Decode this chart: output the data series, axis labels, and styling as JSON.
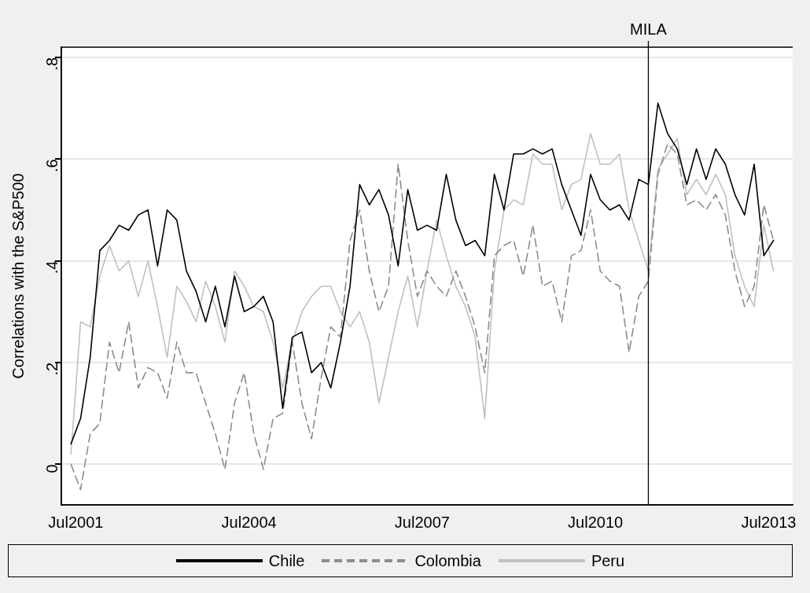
{
  "chart_data": {
    "type": "line",
    "ylabel": "Correlations with the S&P500",
    "x": [
      "2001-06",
      "2001-08",
      "2001-10",
      "2001-12",
      "2002-02",
      "2002-04",
      "2002-06",
      "2002-08",
      "2002-10",
      "2002-12",
      "2003-02",
      "2003-04",
      "2003-06",
      "2003-08",
      "2003-10",
      "2003-12",
      "2004-02",
      "2004-04",
      "2004-06",
      "2004-08",
      "2004-10",
      "2004-12",
      "2005-02",
      "2005-04",
      "2005-06",
      "2005-08",
      "2005-10",
      "2005-12",
      "2006-02",
      "2006-04",
      "2006-06",
      "2006-08",
      "2006-10",
      "2006-12",
      "2007-02",
      "2007-04",
      "2007-06",
      "2007-08",
      "2007-10",
      "2007-12",
      "2008-02",
      "2008-04",
      "2008-06",
      "2008-08",
      "2008-10",
      "2008-12",
      "2009-02",
      "2009-04",
      "2009-06",
      "2009-08",
      "2009-10",
      "2009-12",
      "2010-02",
      "2010-04",
      "2010-06",
      "2010-08",
      "2010-10",
      "2010-12",
      "2011-02",
      "2011-04",
      "2011-06",
      "2011-08",
      "2011-10",
      "2011-12",
      "2012-02",
      "2012-04",
      "2012-06",
      "2012-08",
      "2012-10",
      "2012-12",
      "2013-02",
      "2013-04",
      "2013-06",
      "2013-08"
    ],
    "series": [
      {
        "name": "Chile",
        "color": "#000000",
        "line_style": "solid",
        "values": [
          0.04,
          0.09,
          0.21,
          0.42,
          0.44,
          0.47,
          0.46,
          0.49,
          0.5,
          0.39,
          0.5,
          0.48,
          0.38,
          0.34,
          0.28,
          0.35,
          0.27,
          0.37,
          0.3,
          0.31,
          0.33,
          0.28,
          0.11,
          0.25,
          0.26,
          0.18,
          0.2,
          0.15,
          0.24,
          0.35,
          0.55,
          0.51,
          0.54,
          0.49,
          0.39,
          0.54,
          0.46,
          0.47,
          0.46,
          0.57,
          0.48,
          0.43,
          0.44,
          0.41,
          0.57,
          0.5,
          0.61,
          0.61,
          0.62,
          0.61,
          0.62,
          0.55,
          0.5,
          0.45,
          0.57,
          0.52,
          0.5,
          0.51,
          0.48,
          0.56,
          0.55,
          0.71,
          0.65,
          0.62,
          0.55,
          0.62,
          0.56,
          0.62,
          0.59,
          0.53,
          0.49,
          0.59,
          0.41,
          0.44
        ]
      },
      {
        "name": "Colombia",
        "color": "#8c8c8c",
        "line_style": "dashed",
        "values": [
          0.0,
          -0.05,
          0.06,
          0.08,
          0.24,
          0.18,
          0.28,
          0.15,
          0.19,
          0.18,
          0.13,
          0.24,
          0.18,
          0.18,
          0.12,
          0.06,
          -0.01,
          0.12,
          0.18,
          0.06,
          -0.01,
          0.09,
          0.1,
          0.24,
          0.12,
          0.05,
          0.17,
          0.27,
          0.25,
          0.44,
          0.5,
          0.38,
          0.3,
          0.35,
          0.59,
          0.44,
          0.33,
          0.38,
          0.35,
          0.33,
          0.38,
          0.33,
          0.27,
          0.18,
          0.41,
          0.43,
          0.44,
          0.37,
          0.47,
          0.35,
          0.36,
          0.28,
          0.41,
          0.42,
          0.5,
          0.38,
          0.36,
          0.35,
          0.22,
          0.33,
          0.36,
          0.57,
          0.63,
          0.61,
          0.51,
          0.52,
          0.5,
          0.53,
          0.49,
          0.38,
          0.31,
          0.35,
          0.51,
          0.44
        ]
      },
      {
        "name": "Peru",
        "color": "#c0c0c0",
        "line_style": "solid",
        "values": [
          0.02,
          0.28,
          0.27,
          0.37,
          0.43,
          0.38,
          0.4,
          0.33,
          0.4,
          0.31,
          0.21,
          0.35,
          0.32,
          0.28,
          0.36,
          0.31,
          0.24,
          0.38,
          0.35,
          0.31,
          0.3,
          0.24,
          0.15,
          0.24,
          0.3,
          0.33,
          0.35,
          0.35,
          0.3,
          0.27,
          0.3,
          0.24,
          0.12,
          0.21,
          0.3,
          0.37,
          0.27,
          0.38,
          0.48,
          0.41,
          0.35,
          0.31,
          0.25,
          0.09,
          0.38,
          0.5,
          0.52,
          0.51,
          0.61,
          0.59,
          0.59,
          0.5,
          0.55,
          0.56,
          0.65,
          0.59,
          0.59,
          0.61,
          0.5,
          0.44,
          0.38,
          0.58,
          0.61,
          0.64,
          0.53,
          0.56,
          0.53,
          0.57,
          0.53,
          0.41,
          0.35,
          0.31,
          0.47,
          0.38
        ]
      }
    ],
    "xlim": [
      "2001-04",
      "2013-12"
    ],
    "xticks": [
      {
        "value": "2001-07",
        "label": "Jul2001"
      },
      {
        "value": "2004-07",
        "label": "Jul2004"
      },
      {
        "value": "2007-07",
        "label": "Jul2007"
      },
      {
        "value": "2010-07",
        "label": "Jul2010"
      },
      {
        "value": "2013-07",
        "label": "Jul2013"
      }
    ],
    "ylim": [
      -0.08,
      0.82
    ],
    "yticks": [
      {
        "value": 0,
        "label": "0"
      },
      {
        "value": 0.2,
        "label": ".2"
      },
      {
        "value": 0.4,
        "label": ".4"
      },
      {
        "value": 0.6,
        "label": ".6"
      },
      {
        "value": 0.8,
        "label": ".8"
      }
    ],
    "ref_lines": [
      {
        "axis": "x",
        "value": "2011-06",
        "label": "MILA",
        "color": "#000000"
      }
    ],
    "grid": "y",
    "legend": "bottom",
    "marker": "none"
  }
}
